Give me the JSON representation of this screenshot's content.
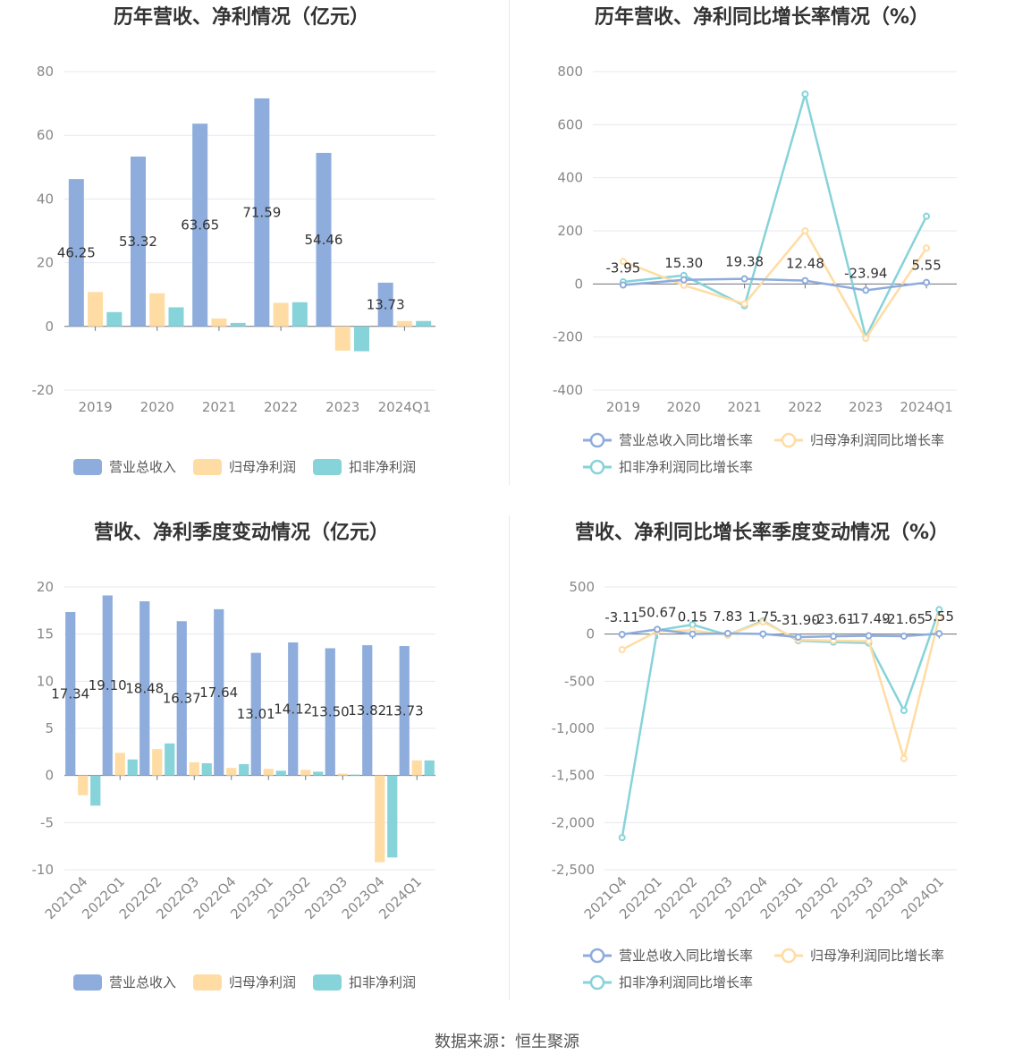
{
  "colors": {
    "revenue": "#8eacdc",
    "net_profit": "#ffdca3",
    "deducted_profit": "#86d3d9",
    "grid": "#e6e8ef",
    "axis": "#6e7079"
  },
  "source_text": "数据来源：恒生聚源",
  "chart_data": [
    {
      "type": "bar",
      "title": "历年营收、净利情况（亿元）",
      "categories": [
        "2019",
        "2020",
        "2021",
        "2022",
        "2023",
        "2024Q1"
      ],
      "yticks": [
        -20,
        0,
        20,
        40,
        60,
        80
      ],
      "ylim": [
        -20,
        80
      ],
      "legend": [
        "营业总收入",
        "归母净利润",
        "扣非净利润"
      ],
      "labels": [
        "46.25",
        "53.32",
        "63.65",
        "71.59",
        "54.46",
        "13.73"
      ],
      "series": [
        {
          "name": "营业总收入",
          "values": [
            46.25,
            53.32,
            63.65,
            71.59,
            54.46,
            13.73
          ]
        },
        {
          "name": "归母净利润",
          "values": [
            10.8,
            10.4,
            2.5,
            7.4,
            -7.6,
            1.7
          ]
        },
        {
          "name": "扣非净利润",
          "values": [
            4.5,
            6.0,
            1.1,
            7.6,
            -7.8,
            1.7
          ]
        }
      ]
    },
    {
      "type": "line",
      "title": "历年营收、净利同比增长率情况（%）",
      "categories": [
        "2019",
        "2020",
        "2021",
        "2022",
        "2023",
        "2024Q1"
      ],
      "yticks": [
        -400,
        -200,
        0,
        200,
        400,
        600,
        800
      ],
      "ylim": [
        -400,
        800
      ],
      "legend": [
        "营业总收入同比增长率",
        "归母净利润同比增长率",
        "扣非净利润同比增长率"
      ],
      "labels": [
        "-3.95",
        "15.30",
        "19.38",
        "12.48",
        "-23.94",
        "5.55"
      ],
      "series": [
        {
          "name": "营业总收入同比增长率",
          "values": [
            -3.95,
            15.3,
            19.38,
            12.48,
            -23.94,
            5.55
          ]
        },
        {
          "name": "归母净利润同比增长率",
          "values": [
            85,
            -5,
            -75,
            200,
            -205,
            135
          ]
        },
        {
          "name": "扣非净利润同比增长率",
          "values": [
            8,
            32,
            -82,
            715,
            -200,
            255
          ]
        }
      ]
    },
    {
      "type": "bar",
      "title": "营收、净利季度变动情况（亿元）",
      "categories": [
        "2021Q4",
        "2022Q1",
        "2022Q2",
        "2022Q3",
        "2022Q4",
        "2023Q1",
        "2023Q2",
        "2023Q3",
        "2023Q4",
        "2024Q1"
      ],
      "yticks": [
        -10,
        -5,
        0,
        5,
        10,
        15,
        20
      ],
      "ylim": [
        -10,
        20
      ],
      "legend": [
        "营业总收入",
        "归母净利润",
        "扣非净利润"
      ],
      "labels": [
        "17.34",
        "19.10",
        "18.48",
        "16.37",
        "17.64",
        "13.01",
        "14.12",
        "13.50",
        "13.82",
        "13.73"
      ],
      "series": [
        {
          "name": "营业总收入",
          "values": [
            17.34,
            19.1,
            18.48,
            16.37,
            17.64,
            13.01,
            14.12,
            13.5,
            13.82,
            13.73
          ]
        },
        {
          "name": "归母净利润",
          "values": [
            -2.1,
            2.4,
            2.8,
            1.4,
            0.8,
            0.7,
            0.6,
            0.2,
            -9.2,
            1.6
          ]
        },
        {
          "name": "扣非净利润",
          "values": [
            -3.2,
            1.7,
            3.4,
            1.3,
            1.2,
            0.5,
            0.4,
            0.1,
            -8.7,
            1.6
          ]
        }
      ]
    },
    {
      "type": "line",
      "title": "营收、净利同比增长率季度变动情况（%）",
      "categories": [
        "2021Q4",
        "2022Q1",
        "2022Q2",
        "2022Q3",
        "2022Q4",
        "2023Q1",
        "2023Q2",
        "2023Q3",
        "2023Q4",
        "2024Q1"
      ],
      "yticks": [
        -2500,
        -2000,
        -1500,
        -1000,
        -500,
        0,
        500
      ],
      "ylim": [
        -2500,
        500
      ],
      "legend": [
        "营业总收入同比增长率",
        "归母净利润同比增长率",
        "扣非净利润同比增长率"
      ],
      "labels": [
        "-3.11",
        "50.67",
        "0.15",
        "7.83",
        "1.75",
        "-31.90",
        "-23.61",
        "-17.49",
        "-21.65",
        "5.55"
      ],
      "series": [
        {
          "name": "营业总收入同比增长率",
          "values": [
            -3.11,
            50.67,
            0.15,
            7.83,
            1.75,
            -31.9,
            -23.61,
            -17.49,
            -21.65,
            5.55
          ]
        },
        {
          "name": "归母净利润同比增长率",
          "values": [
            -165,
            30,
            40,
            -10,
            130,
            -60,
            -70,
            -75,
            -1320,
            175
          ]
        },
        {
          "name": "扣非净利润同比增长率",
          "values": [
            -2160,
            40,
            100,
            -10,
            140,
            -70,
            -85,
            -95,
            -810,
            260
          ]
        }
      ]
    }
  ]
}
